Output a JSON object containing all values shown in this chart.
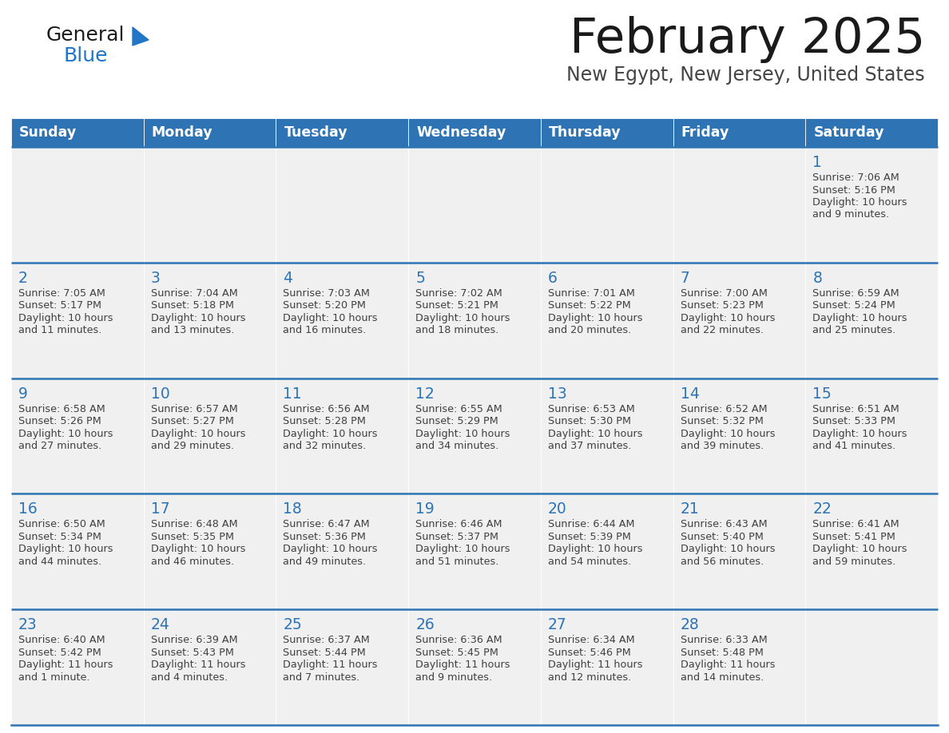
{
  "title": "February 2025",
  "subtitle": "New Egypt, New Jersey, United States",
  "days_of_week": [
    "Sunday",
    "Monday",
    "Tuesday",
    "Wednesday",
    "Thursday",
    "Friday",
    "Saturday"
  ],
  "header_bg": "#2E74B5",
  "header_text": "#FFFFFF",
  "cell_bg": "#F0F0F0",
  "day_number_color": "#2E74B5",
  "text_color": "#404040",
  "border_color": "#2E74B5",
  "logo_text_color": "#1A1A1A",
  "logo_blue_color": "#2176C7",
  "title_color": "#1A1A1A",
  "subtitle_color": "#444444",
  "calendar_data": [
    [
      null,
      null,
      null,
      null,
      null,
      null,
      {
        "day": "1",
        "sunrise": "7:06 AM",
        "sunset": "5:16 PM",
        "dl1": "Daylight: 10 hours",
        "dl2": "and 9 minutes."
      }
    ],
    [
      {
        "day": "2",
        "sunrise": "7:05 AM",
        "sunset": "5:17 PM",
        "dl1": "Daylight: 10 hours",
        "dl2": "and 11 minutes."
      },
      {
        "day": "3",
        "sunrise": "7:04 AM",
        "sunset": "5:18 PM",
        "dl1": "Daylight: 10 hours",
        "dl2": "and 13 minutes."
      },
      {
        "day": "4",
        "sunrise": "7:03 AM",
        "sunset": "5:20 PM",
        "dl1": "Daylight: 10 hours",
        "dl2": "and 16 minutes."
      },
      {
        "day": "5",
        "sunrise": "7:02 AM",
        "sunset": "5:21 PM",
        "dl1": "Daylight: 10 hours",
        "dl2": "and 18 minutes."
      },
      {
        "day": "6",
        "sunrise": "7:01 AM",
        "sunset": "5:22 PM",
        "dl1": "Daylight: 10 hours",
        "dl2": "and 20 minutes."
      },
      {
        "day": "7",
        "sunrise": "7:00 AM",
        "sunset": "5:23 PM",
        "dl1": "Daylight: 10 hours",
        "dl2": "and 22 minutes."
      },
      {
        "day": "8",
        "sunrise": "6:59 AM",
        "sunset": "5:24 PM",
        "dl1": "Daylight: 10 hours",
        "dl2": "and 25 minutes."
      }
    ],
    [
      {
        "day": "9",
        "sunrise": "6:58 AM",
        "sunset": "5:26 PM",
        "dl1": "Daylight: 10 hours",
        "dl2": "and 27 minutes."
      },
      {
        "day": "10",
        "sunrise": "6:57 AM",
        "sunset": "5:27 PM",
        "dl1": "Daylight: 10 hours",
        "dl2": "and 29 minutes."
      },
      {
        "day": "11",
        "sunrise": "6:56 AM",
        "sunset": "5:28 PM",
        "dl1": "Daylight: 10 hours",
        "dl2": "and 32 minutes."
      },
      {
        "day": "12",
        "sunrise": "6:55 AM",
        "sunset": "5:29 PM",
        "dl1": "Daylight: 10 hours",
        "dl2": "and 34 minutes."
      },
      {
        "day": "13",
        "sunrise": "6:53 AM",
        "sunset": "5:30 PM",
        "dl1": "Daylight: 10 hours",
        "dl2": "and 37 minutes."
      },
      {
        "day": "14",
        "sunrise": "6:52 AM",
        "sunset": "5:32 PM",
        "dl1": "Daylight: 10 hours",
        "dl2": "and 39 minutes."
      },
      {
        "day": "15",
        "sunrise": "6:51 AM",
        "sunset": "5:33 PM",
        "dl1": "Daylight: 10 hours",
        "dl2": "and 41 minutes."
      }
    ],
    [
      {
        "day": "16",
        "sunrise": "6:50 AM",
        "sunset": "5:34 PM",
        "dl1": "Daylight: 10 hours",
        "dl2": "and 44 minutes."
      },
      {
        "day": "17",
        "sunrise": "6:48 AM",
        "sunset": "5:35 PM",
        "dl1": "Daylight: 10 hours",
        "dl2": "and 46 minutes."
      },
      {
        "day": "18",
        "sunrise": "6:47 AM",
        "sunset": "5:36 PM",
        "dl1": "Daylight: 10 hours",
        "dl2": "and 49 minutes."
      },
      {
        "day": "19",
        "sunrise": "6:46 AM",
        "sunset": "5:37 PM",
        "dl1": "Daylight: 10 hours",
        "dl2": "and 51 minutes."
      },
      {
        "day": "20",
        "sunrise": "6:44 AM",
        "sunset": "5:39 PM",
        "dl1": "Daylight: 10 hours",
        "dl2": "and 54 minutes."
      },
      {
        "day": "21",
        "sunrise": "6:43 AM",
        "sunset": "5:40 PM",
        "dl1": "Daylight: 10 hours",
        "dl2": "and 56 minutes."
      },
      {
        "day": "22",
        "sunrise": "6:41 AM",
        "sunset": "5:41 PM",
        "dl1": "Daylight: 10 hours",
        "dl2": "and 59 minutes."
      }
    ],
    [
      {
        "day": "23",
        "sunrise": "6:40 AM",
        "sunset": "5:42 PM",
        "dl1": "Daylight: 11 hours",
        "dl2": "and 1 minute."
      },
      {
        "day": "24",
        "sunrise": "6:39 AM",
        "sunset": "5:43 PM",
        "dl1": "Daylight: 11 hours",
        "dl2": "and 4 minutes."
      },
      {
        "day": "25",
        "sunrise": "6:37 AM",
        "sunset": "5:44 PM",
        "dl1": "Daylight: 11 hours",
        "dl2": "and 7 minutes."
      },
      {
        "day": "26",
        "sunrise": "6:36 AM",
        "sunset": "5:45 PM",
        "dl1": "Daylight: 11 hours",
        "dl2": "and 9 minutes."
      },
      {
        "day": "27",
        "sunrise": "6:34 AM",
        "sunset": "5:46 PM",
        "dl1": "Daylight: 11 hours",
        "dl2": "and 12 minutes."
      },
      {
        "day": "28",
        "sunrise": "6:33 AM",
        "sunset": "5:48 PM",
        "dl1": "Daylight: 11 hours",
        "dl2": "and 14 minutes."
      },
      null
    ]
  ]
}
